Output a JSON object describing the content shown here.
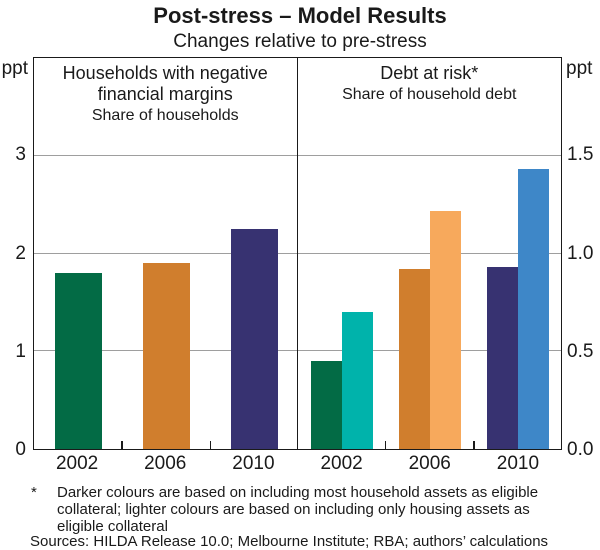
{
  "title": "Post-stress – Model Results",
  "subtitle": "Changes relative to pre-stress",
  "axes": {
    "left_unit": "ppt",
    "right_unit": "ppt"
  },
  "footnote": {
    "marker": "*",
    "text": "Darker colours are based on including most household assets as eligible collateral; lighter colours are based on including only housing assets as eligible collateral"
  },
  "sources": "Sources: HILDA Release 10.0; Melbourne Institute; RBA; authors’ calculations",
  "chart_data": [
    {
      "type": "bar",
      "title": "Households with negative financial margins",
      "subtitle": "Share of households",
      "axis_side": "left",
      "unit": "ppt",
      "ylim": [
        0,
        4
      ],
      "yticks": [
        0,
        1,
        2,
        3
      ],
      "ytick_labels": [
        "0",
        "1",
        "2",
        "3"
      ],
      "grid": true,
      "categories": [
        "2002",
        "2006",
        "2010"
      ],
      "series": [
        {
          "name": "Households with negative financial margins",
          "values": [
            1.8,
            1.9,
            2.25
          ],
          "colors": [
            "#036B45",
            "#D07E2D",
            "#373271"
          ]
        }
      ]
    },
    {
      "type": "bar",
      "title": "Debt at risk*",
      "subtitle": "Share of household debt",
      "axis_side": "right",
      "unit": "ppt",
      "ylim": [
        0,
        2
      ],
      "yticks": [
        0,
        0.5,
        1,
        1.5
      ],
      "ytick_labels": [
        "0.0",
        "0.5",
        "1.0",
        "1.5"
      ],
      "grid": true,
      "categories": [
        "2002",
        "2006",
        "2010"
      ],
      "series": [
        {
          "name": "darker – most household assets as eligible collateral",
          "values": [
            0.45,
            0.92,
            0.93
          ],
          "colors": [
            "#036B45",
            "#D07E2D",
            "#373271"
          ]
        },
        {
          "name": "lighter – only housing assets as eligible collateral",
          "values": [
            0.7,
            1.22,
            1.43
          ],
          "colors": [
            "#00B3AB",
            "#F7A95C",
            "#3E87C8"
          ]
        }
      ]
    }
  ]
}
